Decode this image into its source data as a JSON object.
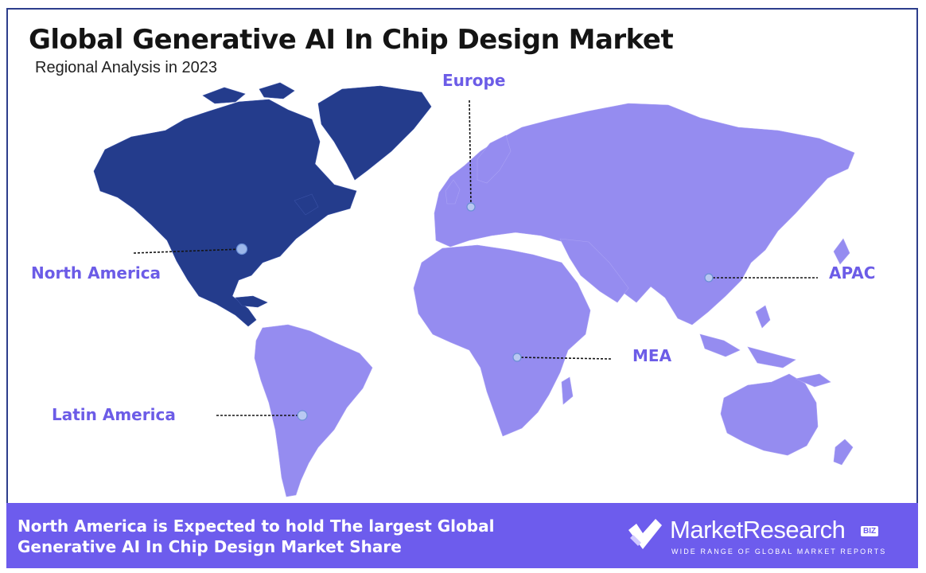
{
  "header": {
    "title": "Global Generative AI In Chip Design Market",
    "subtitle": "Regional Analysis in 2023"
  },
  "regions": [
    {
      "key": "north_america",
      "label": "North America",
      "highlighted": true
    },
    {
      "key": "europe",
      "label": "Europe",
      "highlighted": false
    },
    {
      "key": "apac",
      "label": "APAC",
      "highlighted": false
    },
    {
      "key": "mea",
      "label": "MEA",
      "highlighted": false
    },
    {
      "key": "latin_america",
      "label": "Latin America",
      "highlighted": false
    }
  ],
  "footer": {
    "statement": "North America is Expected to hold The largest Global Generative AI In Chip Design Market Share"
  },
  "brand": {
    "name": "MarketResearch",
    "badge": "BIZ",
    "tagline": "WIDE RANGE OF GLOBAL MARKET REPORTS",
    "icon": "check-logo-icon"
  },
  "colors": {
    "highlight_region": "#243c8c",
    "other_regions": "#958cf0",
    "label_color": "#6c5ce7",
    "footer_background": "#6d5ced",
    "frame_border": "#2d3e8c"
  }
}
